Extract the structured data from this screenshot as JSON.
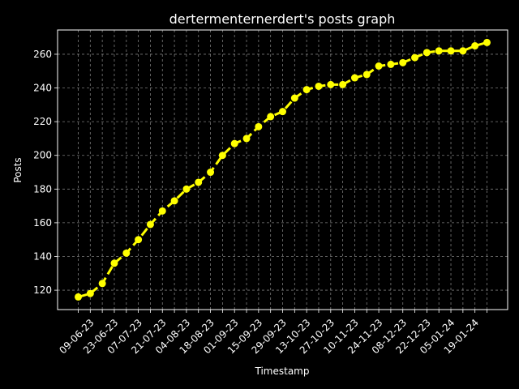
{
  "chart_data": {
    "type": "line",
    "title": "dertermenternerdert's posts graph",
    "x_label": "Timestamp",
    "y_label": "Posts",
    "categories": [
      null,
      "09-06-23",
      null,
      "23-06-23",
      null,
      "07-07-23",
      null,
      "21-07-23",
      null,
      "04-08-23",
      null,
      "18-08-23",
      null,
      "01-09-23",
      null,
      "15-09-23",
      null,
      "29-09-23",
      null,
      "13-10-23",
      null,
      "27-10-23",
      null,
      "10-11-23",
      null,
      "24-11-23",
      null,
      "08-12-23",
      null,
      "22-12-23",
      null,
      "05-01-24",
      null,
      "19-01-24",
      null
    ],
    "series": [
      {
        "name": "Posts",
        "color": "#ffff00",
        "values": [
          116,
          118,
          124,
          136,
          142,
          150,
          159,
          167,
          173,
          180,
          184,
          190,
          200,
          207,
          210,
          217,
          223,
          226,
          234,
          239,
          241,
          242,
          242,
          246,
          248,
          253,
          254,
          255,
          258,
          261,
          262,
          262,
          262,
          265,
          267
        ]
      }
    ],
    "ylim": [
      108.5,
      274.4
    ],
    "yticks": [
      120,
      140,
      160,
      180,
      200,
      220,
      240,
      260
    ],
    "grid": true
  }
}
